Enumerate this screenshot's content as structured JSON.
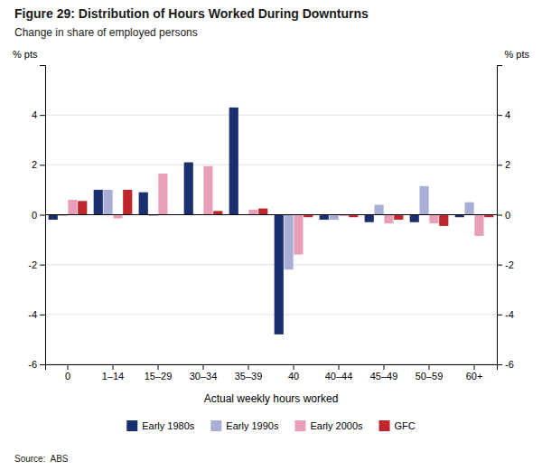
{
  "chart_data": {
    "type": "bar",
    "title": "Figure 29: Distribution of Hours Worked During Downturns",
    "subtitle": "Change in share of employed persons",
    "xlabel": "Actual weekly hours worked",
    "ylabel": "% pts",
    "y2label": "% pts",
    "source": "Source:  ABS",
    "categories": [
      "0",
      "1–14",
      "15–29",
      "30–34",
      "35–39",
      "40",
      "40–44",
      "45–49",
      "50–59",
      "60+"
    ],
    "series": [
      {
        "name": "Early 1980s",
        "color": "#1a2f6e",
        "values": [
          -0.2,
          1.0,
          0.9,
          2.1,
          4.3,
          -4.8,
          -0.2,
          -0.3,
          -0.3,
          -0.1
        ]
      },
      {
        "name": "Early 1990s",
        "color": "#a8aed4",
        "values": [
          -0.05,
          1.0,
          -0.05,
          0.0,
          0.0,
          -2.2,
          -0.2,
          0.4,
          1.15,
          0.5
        ]
      },
      {
        "name": "Early 2000s",
        "color": "#e8a0b8",
        "values": [
          0.6,
          -0.15,
          1.65,
          1.95,
          0.2,
          -1.6,
          -0.05,
          -0.35,
          -0.35,
          -0.85
        ]
      },
      {
        "name": "GFC",
        "color": "#c0272d",
        "values": [
          0.55,
          1.0,
          0.0,
          0.15,
          0.25,
          -0.1,
          -0.1,
          -0.2,
          -0.45,
          -0.1
        ]
      }
    ],
    "ylim": [
      -6,
      6
    ],
    "yticks": [
      -6,
      -4,
      -2,
      0,
      2,
      4
    ],
    "y2lim": [
      -6,
      6
    ],
    "y2ticks": [
      -6,
      -4,
      -2,
      0,
      2,
      4
    ],
    "grid": true,
    "legend": "bottom"
  }
}
